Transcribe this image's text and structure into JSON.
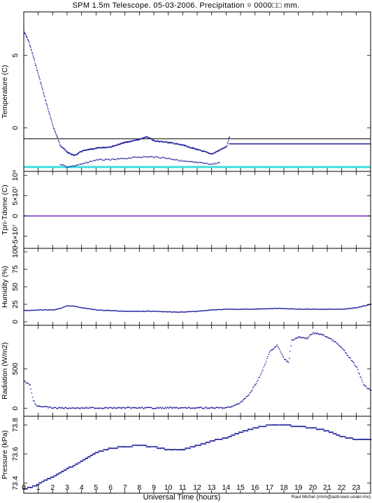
{
  "title": "SPM 1.5m Telescope. 05-03-2006. Precipitation = 0000□□ mm.",
  "xlabel": "Universal Time (hours)",
  "credit": "Raul Michel (rmm@astrosen.unam.mx)",
  "colors": {
    "data": "#1c1c9c",
    "black_line": "#000000",
    "cyan_line": "#3fe0e0",
    "purple_line": "#7b16c8"
  },
  "chart_data": [
    {
      "type": "scatter",
      "ylabel": "Temperature (C)",
      "xlim": [
        0,
        24
      ],
      "ylim": [
        -3,
        8
      ],
      "yticks": [
        0,
        5
      ],
      "ytick_labels": [
        "0",
        "5"
      ],
      "reference_lines": [
        {
          "color": "black",
          "y": -0.75
        },
        {
          "color": "cyan",
          "y": -2.7
        }
      ],
      "series": [
        {
          "values_x": [
            0.0,
            0.3,
            0.6,
            1.0,
            1.5,
            2.0,
            2.5,
            3.0,
            3.5,
            4.0,
            5.0,
            6.0,
            7.0,
            8.0,
            8.5,
            9.0,
            10.0,
            11.0,
            12.0,
            13.0,
            14.0,
            14.2
          ],
          "values_y": [
            6.6,
            6.0,
            5.0,
            3.6,
            1.8,
            0.1,
            -1.2,
            -1.7,
            -1.9,
            -1.6,
            -1.4,
            -1.3,
            -1.0,
            -0.8,
            -0.6,
            -0.9,
            -1.0,
            -1.2,
            -1.5,
            -1.8,
            -1.3,
            -0.6
          ]
        },
        {
          "values_x": [
            2.5,
            3.0,
            4.0,
            5.0,
            6.0,
            7.0,
            8.0,
            9.0,
            10.0,
            11.0,
            12.0,
            13.0,
            13.5
          ],
          "values_y": [
            -2.5,
            -2.7,
            -2.5,
            -2.2,
            -2.2,
            -2.1,
            -2.0,
            -2.0,
            -2.1,
            -2.3,
            -2.4,
            -2.5,
            -2.4
          ]
        },
        {
          "values_x": [
            14.2,
            24.0
          ],
          "values_y": [
            -1.1,
            -1.1
          ]
        }
      ]
    },
    {
      "type": "line",
      "ylabel": "Tpri-Tdome (C)",
      "xlim": [
        0,
        24
      ],
      "ylim": [
        -80000000.0,
        110000000.0
      ],
      "yticks": [
        -50000000.0,
        0,
        50000000.0,
        100000000.0
      ],
      "ytick_labels": [
        "−5×10⁷",
        "0",
        "5×10⁷",
        "10⁸"
      ],
      "series": [
        {
          "values_x": [
            0,
            24
          ],
          "values_y": [
            0,
            0
          ]
        }
      ]
    },
    {
      "type": "scatter",
      "ylabel": "Humidity (%)",
      "xlim": [
        0,
        24
      ],
      "ylim": [
        -5,
        105
      ],
      "yticks": [
        0,
        25,
        50,
        75,
        100
      ],
      "ytick_labels": [
        "0",
        "25",
        "50",
        "75",
        "100"
      ],
      "series": [
        {
          "values_x": [
            0,
            1,
            2,
            2.5,
            3,
            3.5,
            4,
            5,
            6,
            7,
            8,
            9,
            10,
            11,
            12,
            13,
            14,
            15,
            16,
            17,
            18,
            19,
            20,
            21,
            22,
            23,
            24
          ],
          "values_y": [
            16,
            17,
            17,
            19,
            23,
            22,
            20,
            17,
            16,
            15,
            15,
            15,
            14,
            14,
            15,
            17,
            18,
            18,
            18,
            19,
            19,
            18,
            18,
            18,
            18,
            20,
            25
          ]
        }
      ]
    },
    {
      "type": "scatter",
      "ylabel": "Radiation (W/m2)",
      "xlim": [
        0,
        24
      ],
      "ylim": [
        -100,
        1050
      ],
      "yticks": [
        0,
        500
      ],
      "ytick_labels": [
        "0",
        "500"
      ],
      "series": [
        {
          "values_x": [
            0,
            0.4,
            0.6,
            0.8,
            1.0,
            1.5,
            2,
            4,
            6,
            8,
            10,
            12,
            13,
            14,
            14.5,
            15,
            15.5,
            16,
            16.5,
            17,
            17.5,
            18,
            18.3,
            18.5,
            19,
            19.5,
            20,
            20.5,
            21,
            21.5,
            22,
            22.5,
            23,
            23.5,
            24
          ],
          "values_y": [
            340,
            300,
            120,
            40,
            30,
            15,
            5,
            5,
            5,
            5,
            5,
            5,
            5,
            5,
            30,
            80,
            160,
            300,
            480,
            720,
            800,
            620,
            580,
            860,
            900,
            880,
            950,
            940,
            900,
            840,
            760,
            640,
            520,
            300,
            220
          ]
        }
      ]
    },
    {
      "type": "scatter",
      "ylabel": "Pressure (kPa)",
      "xlim": [
        0,
        24
      ],
      "ylim": [
        73.33,
        73.86
      ],
      "yticks": [
        73.4,
        73.6,
        73.8
      ],
      "ytick_labels": [
        "73.4",
        "73.6",
        "73.8"
      ],
      "series": [
        {
          "values_x": [
            0,
            0.5,
            1,
            1.5,
            2,
            2.5,
            3,
            3.5,
            4,
            4.5,
            5,
            6,
            7,
            8,
            9,
            10,
            11,
            12,
            12.5,
            13,
            14,
            15,
            16,
            17,
            18,
            19,
            20,
            20.5,
            21,
            21.5,
            22,
            23,
            24
          ],
          "values_y": [
            73.36,
            73.37,
            73.39,
            73.42,
            73.44,
            73.47,
            73.5,
            73.52,
            73.55,
            73.58,
            73.61,
            73.64,
            73.65,
            73.66,
            73.65,
            73.63,
            73.63,
            73.66,
            73.67,
            73.69,
            73.71,
            73.75,
            73.78,
            73.8,
            73.8,
            73.79,
            73.78,
            73.77,
            73.76,
            73.74,
            73.72,
            73.7,
            73.7
          ]
        }
      ]
    }
  ],
  "xticks": [
    0,
    1,
    2,
    3,
    4,
    5,
    6,
    7,
    8,
    9,
    10,
    11,
    12,
    13,
    14,
    15,
    16,
    17,
    18,
    19,
    20,
    21,
    22,
    23
  ],
  "xtick_labels": [
    "0",
    "1",
    "2",
    "3",
    "4",
    "5",
    "6",
    "7",
    "8",
    "9",
    "10",
    "11",
    "12",
    "13",
    "14",
    "15",
    "16",
    "17",
    "18",
    "19",
    "20",
    "21",
    "22",
    "23"
  ]
}
